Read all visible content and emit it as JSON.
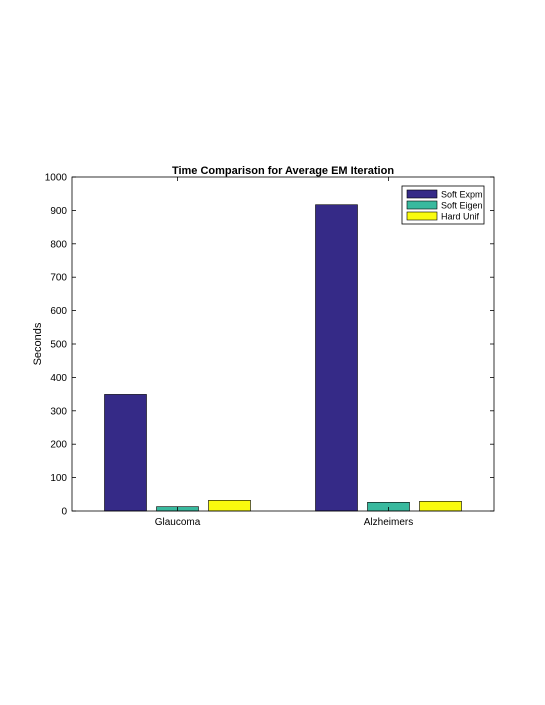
{
  "chart_data": {
    "type": "bar",
    "title": "Time Comparison for Average EM Iteration",
    "xlabel": "",
    "ylabel": "Seconds",
    "ylim": [
      0,
      1000
    ],
    "yticks": [
      0,
      100,
      200,
      300,
      400,
      500,
      600,
      700,
      800,
      900,
      1000
    ],
    "categories": [
      "Glaucoma",
      "Alzheimers"
    ],
    "series": [
      {
        "name": "Soft Expm",
        "color": "#352a87",
        "values": [
          349,
          917
        ]
      },
      {
        "name": "Soft Eigen",
        "color": "#38b99e",
        "values": [
          13,
          26
        ]
      },
      {
        "name": "Hard Unif",
        "color": "#f9fb0e",
        "values": [
          32,
          29
        ]
      }
    ],
    "grid": false,
    "legend": "top-right"
  }
}
